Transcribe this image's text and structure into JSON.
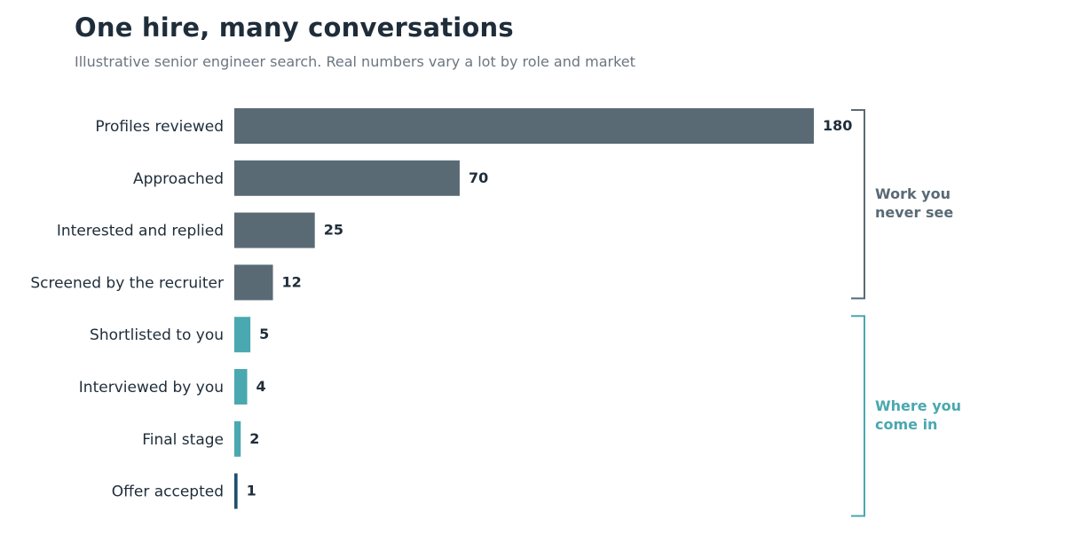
{
  "title": "One hire, many conversations",
  "subtitle": "Illustrative senior engineer search. Real numbers vary a lot by role and market",
  "colors": {
    "hidden": "#5a6a75",
    "visible": "#4aa8b0",
    "final": "#1f4e6e"
  },
  "chart_data": {
    "type": "bar",
    "orientation": "horizontal",
    "categories": [
      "Profiles reviewed",
      "Approached",
      "Interested and replied",
      "Screened by the recruiter",
      "Shortlisted to you",
      "Interviewed by you",
      "Final stage",
      "Offer accepted"
    ],
    "values": [
      180,
      70,
      25,
      12,
      5,
      4,
      2,
      1
    ],
    "groups": [
      "hidden",
      "hidden",
      "hidden",
      "hidden",
      "visible",
      "visible",
      "visible",
      "final"
    ],
    "xlim": [
      0,
      180
    ],
    "grid": false,
    "annotations": [
      {
        "text_lines": [
          "Work you",
          "never see"
        ],
        "from_index": 0,
        "to_index": 3,
        "color_key": "hidden"
      },
      {
        "text_lines": [
          "Where you",
          "come in"
        ],
        "from_index": 4,
        "to_index": 7,
        "color_key": "visible"
      }
    ]
  }
}
